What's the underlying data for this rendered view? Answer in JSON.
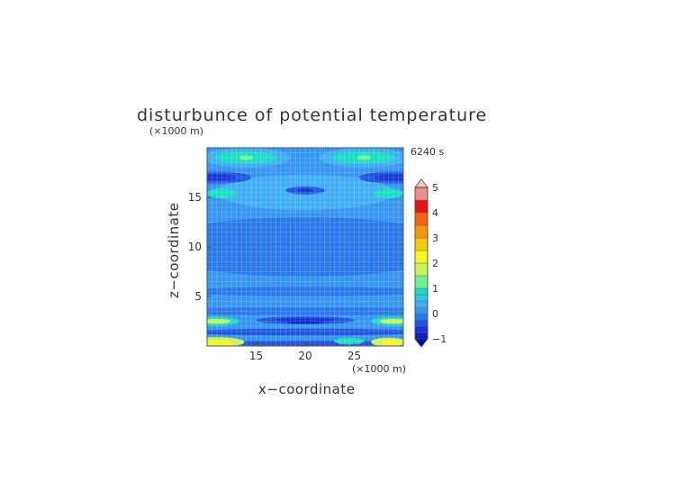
{
  "chart_data": {
    "type": "heatmap",
    "title": "disturbunce of potential temperature",
    "time_label": "6240 s",
    "xlabel": "x−coordinate",
    "ylabel": "z−coordinate",
    "x_unit": "(×1000 m)",
    "y_unit": "(×1000 m)",
    "xlim": [
      10,
      30
    ],
    "ylim": [
      0,
      20
    ],
    "x_ticks": [
      15,
      20,
      25
    ],
    "y_ticks": [
      5,
      10,
      15
    ],
    "colorbar": {
      "range": [
        -1,
        5
      ],
      "tick_values": [
        -1,
        0,
        1,
        2,
        3,
        4,
        5
      ],
      "tick_labels": [
        "−1",
        "0",
        "1",
        "2",
        "3",
        "4",
        "5"
      ],
      "levels": [
        {
          "from": -1.0,
          "to": -0.75,
          "color": "#0c1dcc"
        },
        {
          "from": -0.75,
          "to": -0.5,
          "color": "#1733d6"
        },
        {
          "from": -0.5,
          "to": -0.25,
          "color": "#2155e0"
        },
        {
          "from": -0.25,
          "to": 0.0,
          "color": "#2a79ea"
        },
        {
          "from": 0.0,
          "to": 0.25,
          "color": "#3596f2"
        },
        {
          "from": 0.25,
          "to": 0.5,
          "color": "#3faef4"
        },
        {
          "from": 0.5,
          "to": 0.75,
          "color": "#29c7ee"
        },
        {
          "from": 0.75,
          "to": 1.0,
          "color": "#19dec4"
        },
        {
          "from": 1.0,
          "to": 1.5,
          "color": "#6ef096"
        },
        {
          "from": 1.5,
          "to": 2.0,
          "color": "#c8f55a"
        },
        {
          "from": 2.0,
          "to": 2.5,
          "color": "#f5f520"
        },
        {
          "from": 2.5,
          "to": 3.0,
          "color": "#f5c814"
        },
        {
          "from": 3.0,
          "to": 3.5,
          "color": "#f5960f"
        },
        {
          "from": 3.5,
          "to": 4.0,
          "color": "#f5640f"
        },
        {
          "from": 4.0,
          "to": 4.5,
          "color": "#e61414"
        },
        {
          "from": 4.5,
          "to": 5.0,
          "color": "#f08c8c"
        }
      ],
      "under_color": "#0a0a9e",
      "over_color": "#f5c8c8"
    },
    "base_value": 0.125,
    "features": [
      {
        "x": 20,
        "z": 10,
        "rx": 16,
        "rz": 3.0,
        "value": -0.125
      },
      {
        "x": 20,
        "z": 5.5,
        "rx": 12,
        "rz": 0.5,
        "value": -0.125
      },
      {
        "x": 20,
        "z": 15.5,
        "rx": 9,
        "rz": 1.8,
        "value": 0.375
      },
      {
        "x": 11.5,
        "z": 15.4,
        "rx": 1.5,
        "rz": 0.5,
        "value": 0.875
      },
      {
        "x": 28.5,
        "z": 15.4,
        "rx": 1.5,
        "rz": 0.5,
        "value": 0.875
      },
      {
        "x": 20,
        "z": 15.7,
        "rx": 2,
        "rz": 0.4,
        "value": -0.375
      },
      {
        "x": 20,
        "z": 15.7,
        "rx": 0.8,
        "rz": 0.2,
        "value": -0.625
      },
      {
        "x": 11.0,
        "z": 17.0,
        "rx": 3.5,
        "rz": 0.6,
        "value": -0.375
      },
      {
        "x": 29.0,
        "z": 17.0,
        "rx": 3.5,
        "rz": 0.6,
        "value": -0.375
      },
      {
        "x": 11.0,
        "z": 17.0,
        "rx": 2.0,
        "rz": 0.3,
        "value": -0.625
      },
      {
        "x": 29.0,
        "z": 17.0,
        "rx": 2.0,
        "rz": 0.3,
        "value": -0.625
      },
      {
        "x": 14.0,
        "z": 19.0,
        "rx": 4.5,
        "rz": 1.0,
        "value": 0.375
      },
      {
        "x": 26.0,
        "z": 19.0,
        "rx": 4.5,
        "rz": 1.0,
        "value": 0.375
      },
      {
        "x": 14.0,
        "z": 19.0,
        "rx": 3.2,
        "rz": 0.6,
        "value": 0.875
      },
      {
        "x": 26.0,
        "z": 19.0,
        "rx": 3.2,
        "rz": 0.6,
        "value": 0.875
      },
      {
        "x": 14.0,
        "z": 19.0,
        "rx": 0.7,
        "rz": 0.25,
        "value": 1.25
      },
      {
        "x": 26.0,
        "z": 19.0,
        "rx": 0.7,
        "rz": 0.25,
        "value": 1.25
      },
      {
        "x": 20,
        "z": 3.5,
        "rx": 18,
        "rz": 0.4,
        "value": -0.125
      },
      {
        "x": 20,
        "z": 2.6,
        "rx": 5.0,
        "rz": 0.4,
        "value": -0.375
      },
      {
        "x": 20,
        "z": 2.6,
        "rx": 3.0,
        "rz": 0.25,
        "value": -0.625
      },
      {
        "x": 20,
        "z": 2.4,
        "rx": 1.8,
        "rz": 0.15,
        "value": -0.875
      },
      {
        "x": 11.0,
        "z": 2.5,
        "rx": 2.3,
        "rz": 0.45,
        "value": 0.875
      },
      {
        "x": 29.0,
        "z": 2.5,
        "rx": 2.3,
        "rz": 0.45,
        "value": 0.875
      },
      {
        "x": 11.0,
        "z": 2.5,
        "rx": 1.4,
        "rz": 0.25,
        "value": 1.75
      },
      {
        "x": 29.0,
        "z": 2.5,
        "rx": 1.4,
        "rz": 0.25,
        "value": 1.75
      },
      {
        "x": 20,
        "z": 1.4,
        "rx": 12,
        "rz": 0.35,
        "value": -0.375
      },
      {
        "x": 20,
        "z": 0.3,
        "rx": 13,
        "rz": 0.25,
        "value": -0.375
      },
      {
        "x": 11.0,
        "z": 0.4,
        "rx": 2.8,
        "rz": 0.5,
        "value": 1.75
      },
      {
        "x": 11.0,
        "z": 0.3,
        "rx": 1.8,
        "rz": 0.3,
        "value": 2.25
      },
      {
        "x": 24.5,
        "z": 0.5,
        "rx": 1.5,
        "rz": 0.35,
        "value": 0.875
      },
      {
        "x": 28.5,
        "z": 0.4,
        "rx": 1.8,
        "rz": 0.45,
        "value": 1.75
      },
      {
        "x": 28.8,
        "z": 0.3,
        "rx": 1.0,
        "rz": 0.3,
        "value": 2.25
      }
    ]
  }
}
